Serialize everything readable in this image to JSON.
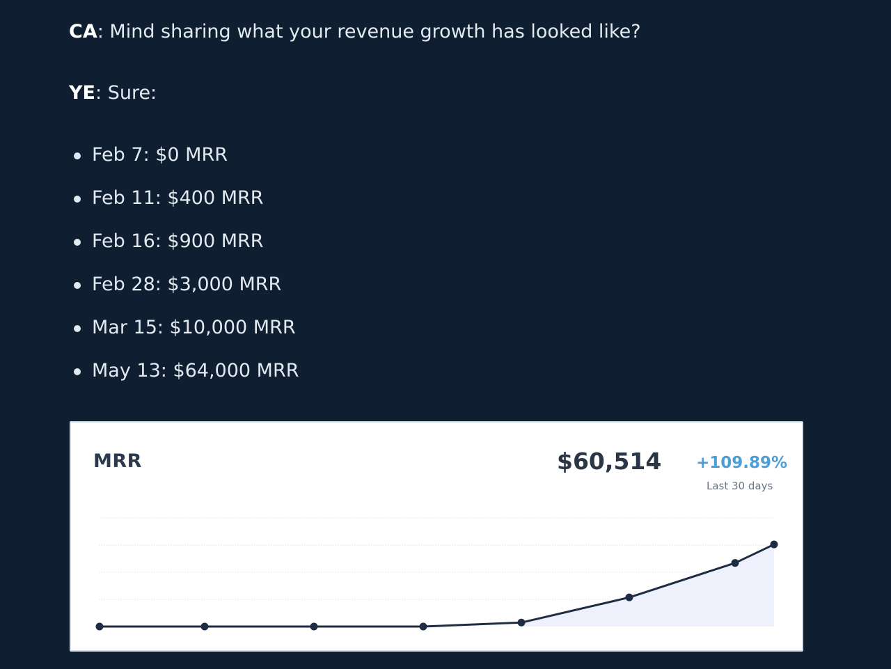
{
  "transcript": {
    "question": {
      "speaker": "CA",
      "separator": ":",
      "text": " Mind sharing what your revenue growth has looked like?"
    },
    "answer": {
      "speaker": "YE",
      "separator": ":",
      "text": " Sure:"
    }
  },
  "milestones": [
    "Feb 7: $0 MRR",
    "Feb 11: $400 MRR",
    "Feb 16: $900 MRR",
    "Feb 28: $3,000 MRR",
    "Mar 15: $10,000 MRR",
    "May 13: $64,000 MRR"
  ],
  "card": {
    "title": "MRR",
    "value": "$60,514",
    "change": "+109.89%",
    "period": "Last 30 days",
    "colors": {
      "line": "#1f2d44",
      "area": "#eef1fc",
      "grid": "#d5d9df",
      "change": "#4a9fd9"
    }
  },
  "chart_data": {
    "type": "line",
    "values": [
      0,
      0,
      0,
      0,
      1.5,
      11,
      24,
      31
    ],
    "ylim": [
      0,
      41
    ],
    "gridlines": true,
    "area_fill_from_index": 4
  }
}
